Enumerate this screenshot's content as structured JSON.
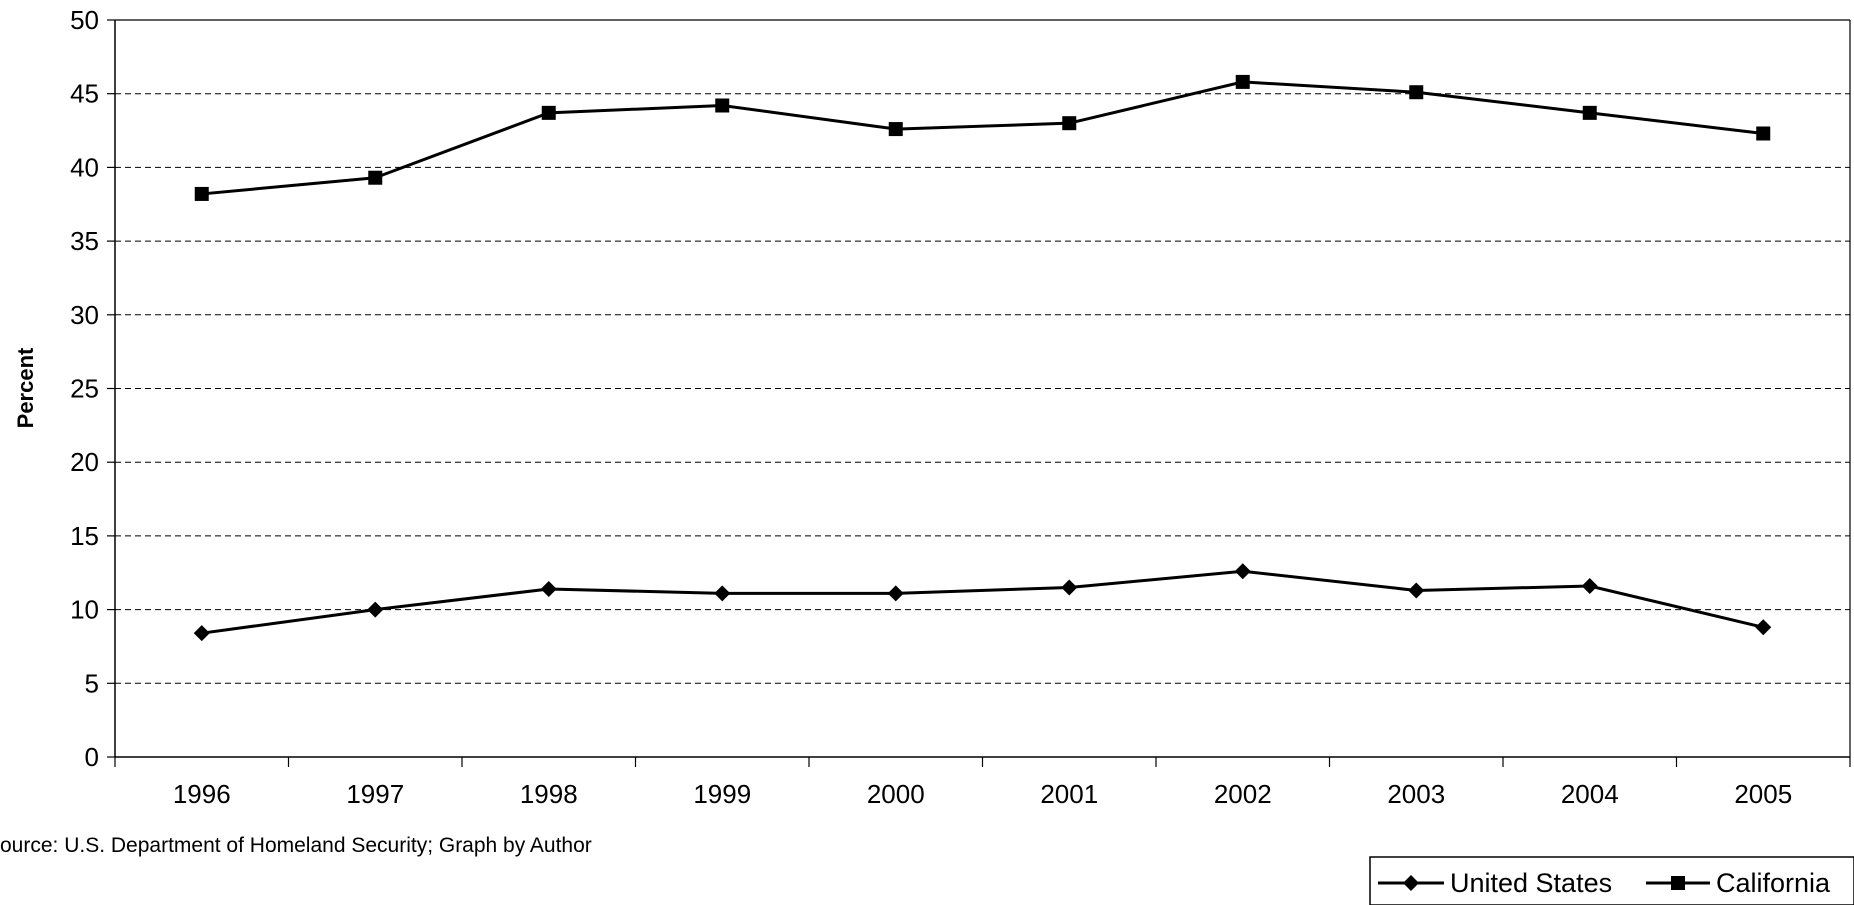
{
  "chart_data": {
    "type": "line",
    "title": "",
    "xlabel": "",
    "ylabel": "Percent",
    "x": [
      "1996",
      "1997",
      "1998",
      "1999",
      "2000",
      "2001",
      "2002",
      "2003",
      "2004",
      "2005"
    ],
    "ylim": [
      0,
      50
    ],
    "yticks": [
      0,
      5,
      10,
      15,
      20,
      25,
      30,
      35,
      40,
      45,
      50
    ],
    "grid": "horizontal dashed",
    "legend_position": "bottom-right",
    "series": [
      {
        "name": "United States",
        "marker": "diamond",
        "color": "#000000",
        "values": [
          8.4,
          10.0,
          11.4,
          11.1,
          11.1,
          11.5,
          12.6,
          11.3,
          11.6,
          8.8
        ]
      },
      {
        "name": "California",
        "marker": "square",
        "color": "#000000",
        "values": [
          38.2,
          39.3,
          43.7,
          44.2,
          42.6,
          43.0,
          45.8,
          45.1,
          43.7,
          42.3
        ]
      }
    ],
    "source": "ource: U.S. Department of Homeland Security; Graph by Author"
  }
}
